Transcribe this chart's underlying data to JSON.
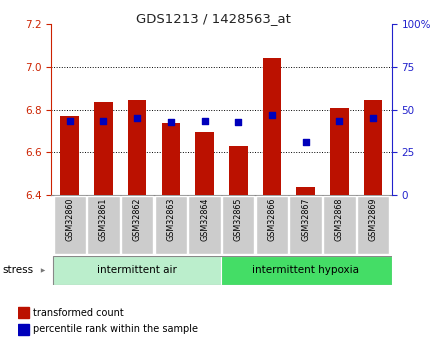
{
  "title": "GDS1213 / 1428563_at",
  "samples": [
    "GSM32860",
    "GSM32861",
    "GSM32862",
    "GSM32863",
    "GSM32864",
    "GSM32865",
    "GSM32866",
    "GSM32867",
    "GSM32868",
    "GSM32869"
  ],
  "red_values": [
    6.77,
    6.835,
    6.845,
    6.735,
    6.695,
    6.63,
    7.04,
    6.435,
    6.805,
    6.845
  ],
  "blue_values": [
    6.745,
    6.745,
    6.762,
    6.743,
    6.748,
    6.742,
    6.775,
    6.648,
    6.745,
    6.762
  ],
  "y_min": 6.4,
  "y_max": 7.2,
  "y_ticks": [
    6.4,
    6.6,
    6.8,
    7.0,
    7.2
  ],
  "right_y_ticks": [
    0,
    25,
    50,
    75,
    100
  ],
  "right_y_labels": [
    "0",
    "25",
    "50",
    "75",
    "100%"
  ],
  "group1_label": "intermittent air",
  "group2_label": "intermittent hypoxia",
  "stress_label": "stress",
  "legend1": "transformed count",
  "legend2": "percentile rank within the sample",
  "bar_color": "#bb1100",
  "dot_color": "#0000bb",
  "group1_color": "#bbeecc",
  "group2_color": "#44dd66",
  "tick_label_bg": "#cccccc",
  "title_color": "#222222",
  "left_axis_color": "#cc2200",
  "right_axis_color": "#2222cc"
}
